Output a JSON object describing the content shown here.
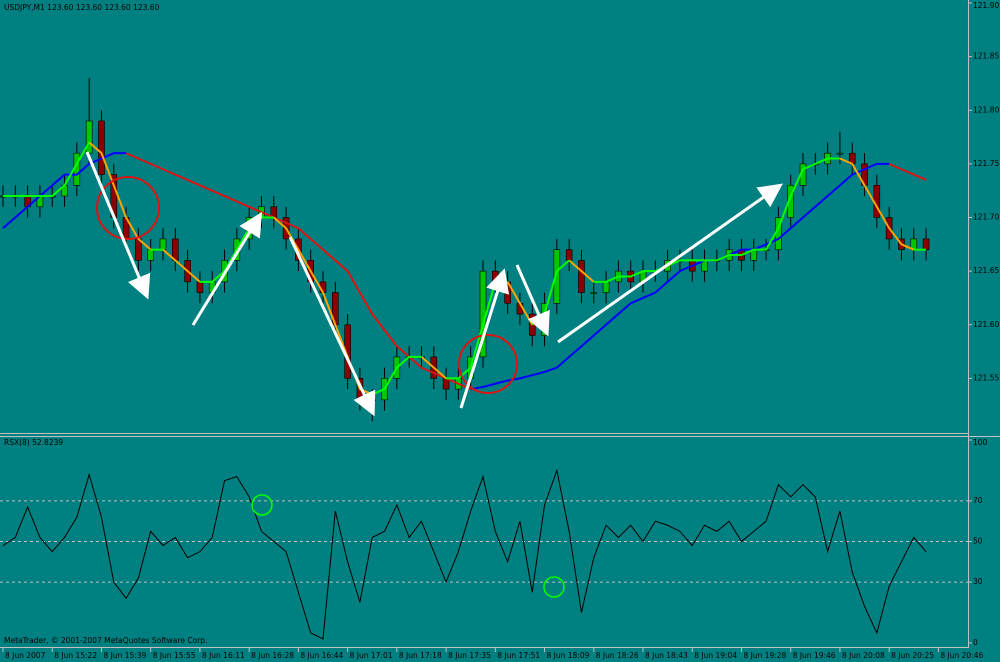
{
  "chart_data": [
    {
      "type": "candlestick",
      "title": "USDJPY,M1  123.60 123.60 123.60 123.60",
      "open": [
        121.72,
        121.72,
        121.72,
        121.71,
        121.72,
        121.72,
        121.73,
        121.76,
        121.79,
        121.74,
        121.7,
        121.68,
        121.66,
        121.67,
        121.68,
        121.66,
        121.64,
        121.63,
        121.64,
        121.66,
        121.68,
        121.7,
        121.71,
        121.7,
        121.68,
        121.66,
        121.64,
        121.63,
        121.6,
        121.55,
        121.53,
        121.53,
        121.55,
        121.57,
        121.57,
        121.57,
        121.55,
        121.54,
        121.55,
        121.57,
        121.65,
        121.64,
        121.62,
        121.61,
        121.59,
        121.62,
        121.67,
        121.66,
        121.63,
        121.63,
        121.64,
        121.65,
        121.64,
        121.65,
        121.65,
        121.66,
        121.66,
        121.65,
        121.66,
        121.66,
        121.67,
        121.66,
        121.67,
        121.67,
        121.7,
        121.73,
        121.75,
        121.75,
        121.76,
        121.76,
        121.75,
        121.73,
        121.7,
        121.68,
        121.67,
        121.68
      ],
      "high": [
        121.73,
        121.73,
        121.73,
        121.73,
        121.73,
        121.74,
        121.77,
        121.83,
        121.8,
        121.75,
        121.71,
        121.69,
        121.68,
        121.69,
        121.69,
        121.67,
        121.65,
        121.65,
        121.67,
        121.69,
        121.71,
        121.72,
        121.72,
        121.71,
        121.69,
        121.67,
        121.65,
        121.64,
        121.61,
        121.56,
        121.54,
        121.56,
        121.58,
        121.58,
        121.58,
        121.58,
        121.56,
        121.56,
        121.58,
        121.66,
        121.66,
        121.65,
        121.63,
        121.62,
        121.63,
        121.68,
        121.68,
        121.67,
        121.64,
        121.65,
        121.66,
        121.66,
        121.66,
        121.66,
        121.67,
        121.67,
        121.67,
        121.67,
        121.67,
        121.68,
        121.68,
        121.68,
        121.68,
        121.71,
        121.74,
        121.76,
        121.76,
        121.77,
        121.78,
        121.77,
        121.76,
        121.74,
        121.71,
        121.69,
        121.69,
        121.69
      ],
      "low": [
        121.71,
        121.71,
        121.7,
        121.7,
        121.71,
        121.71,
        121.72,
        121.75,
        121.73,
        121.69,
        121.67,
        121.65,
        121.65,
        121.66,
        121.65,
        121.63,
        121.62,
        121.62,
        121.63,
        121.65,
        121.67,
        121.69,
        121.69,
        121.67,
        121.65,
        121.63,
        121.62,
        121.59,
        121.54,
        121.52,
        121.51,
        121.52,
        121.54,
        121.56,
        121.56,
        121.54,
        121.53,
        121.53,
        121.54,
        121.56,
        121.63,
        121.61,
        121.6,
        121.58,
        121.58,
        121.61,
        121.65,
        121.62,
        121.62,
        121.62,
        121.63,
        121.63,
        121.63,
        121.64,
        121.64,
        121.65,
        121.64,
        121.64,
        121.65,
        121.65,
        121.65,
        121.65,
        121.66,
        121.66,
        121.69,
        121.72,
        121.74,
        121.74,
        121.75,
        121.74,
        121.72,
        121.69,
        121.67,
        121.66,
        121.66,
        121.66
      ],
      "close": [
        121.72,
        121.72,
        121.71,
        121.72,
        121.72,
        121.73,
        121.76,
        121.79,
        121.74,
        121.7,
        121.68,
        121.66,
        121.67,
        121.68,
        121.66,
        121.64,
        121.63,
        121.64,
        121.66,
        121.68,
        121.7,
        121.71,
        121.7,
        121.68,
        121.66,
        121.64,
        121.63,
        121.6,
        121.55,
        121.53,
        121.53,
        121.55,
        121.57,
        121.57,
        121.57,
        121.55,
        121.54,
        121.55,
        121.57,
        121.65,
        121.64,
        121.62,
        121.61,
        121.59,
        121.62,
        121.67,
        121.66,
        121.63,
        121.63,
        121.64,
        121.65,
        121.64,
        121.65,
        121.65,
        121.66,
        121.66,
        121.65,
        121.66,
        121.66,
        121.67,
        121.66,
        121.67,
        121.67,
        121.7,
        121.73,
        121.75,
        121.75,
        121.76,
        121.76,
        121.75,
        121.73,
        121.7,
        121.68,
        121.67,
        121.68,
        121.67
      ],
      "up_color": "#00c800",
      "down_color": "#8b0000",
      "overlays": [
        {
          "values": [
            121.69,
            121.7,
            121.71,
            121.72,
            121.73,
            121.74,
            121.74,
            121.75,
            121.755,
            121.76,
            121.76,
            121.755,
            121.75,
            121.745,
            121.74,
            121.735,
            121.73,
            121.725,
            121.72,
            121.715,
            121.71,
            121.705,
            121.7,
            121.695,
            121.69,
            121.68,
            121.67,
            121.66,
            121.65,
            121.63,
            121.61,
            121.595,
            121.58,
            121.57,
            121.56,
            121.555,
            121.55,
            121.545,
            121.54,
            121.542,
            121.545,
            121.548,
            121.55,
            121.553,
            121.556,
            121.56,
            121.57,
            121.58,
            121.59,
            121.6,
            121.61,
            121.62,
            121.625,
            121.63,
            121.64,
            121.65,
            121.655,
            121.66,
            121.66,
            121.665,
            121.67,
            121.67,
            121.675,
            121.68,
            121.69,
            121.7,
            121.71,
            121.72,
            121.73,
            121.74,
            121.745,
            121.75,
            121.75,
            121.745,
            121.74,
            121.735
          ],
          "color_up": "#0000ff",
          "color_down": "#dc1414"
        },
        {
          "values": [
            121.72,
            121.72,
            121.72,
            121.72,
            121.72,
            121.73,
            121.75,
            121.77,
            121.76,
            121.73,
            121.7,
            121.68,
            121.67,
            121.67,
            121.66,
            121.65,
            121.64,
            121.64,
            121.65,
            121.67,
            121.69,
            121.7,
            121.7,
            121.69,
            121.67,
            121.65,
            121.63,
            121.6,
            121.57,
            121.54,
            121.535,
            121.54,
            121.56,
            121.57,
            121.57,
            121.56,
            121.55,
            121.55,
            121.56,
            121.6,
            121.64,
            121.64,
            121.62,
            121.6,
            121.61,
            121.65,
            121.66,
            121.65,
            121.64,
            121.64,
            121.645,
            121.645,
            121.65,
            121.65,
            121.655,
            121.66,
            121.66,
            121.66,
            121.66,
            121.665,
            121.665,
            121.67,
            121.67,
            121.69,
            121.72,
            121.745,
            121.75,
            121.755,
            121.755,
            121.75,
            121.73,
            121.71,
            121.69,
            121.675,
            121.67,
            121.67
          ],
          "color_up": "#00ff00",
          "color_down": "#ffa500"
        }
      ],
      "xlim": [
        0,
        78
      ],
      "xticks": [
        {
          "value": 0,
          "label": "8 Jun 2007"
        },
        {
          "value": 4,
          "label": "8 Jun 15:22"
        },
        {
          "value": 8,
          "label": "8 Jun 15:39"
        },
        {
          "value": 12,
          "label": "8 Jun 15:55"
        },
        {
          "value": 16,
          "label": "8 Jun 16:11"
        },
        {
          "value": 20,
          "label": "8 Jun 16:28"
        },
        {
          "value": 24,
          "label": "8 Jun 16:44"
        },
        {
          "value": 28,
          "label": "8 Jun 17:01"
        },
        {
          "value": 32,
          "label": "8 Jun 17:18"
        },
        {
          "value": 36,
          "label": "8 Jun 17:35"
        },
        {
          "value": 40,
          "label": "8 Jun 17:51"
        },
        {
          "value": 44,
          "label": "8 Jun 18:09"
        },
        {
          "value": 48,
          "label": "8 Jun 18:26"
        },
        {
          "value": 52,
          "label": "8 Jun 18:43"
        },
        {
          "value": 56,
          "label": "8 Jun 19:04"
        },
        {
          "value": 60,
          "label": "8 Jun 19:28"
        },
        {
          "value": 64,
          "label": "8 Jun 19:46"
        },
        {
          "value": 68,
          "label": "8 Jun 20:08"
        },
        {
          "value": 72,
          "label": "8 Jun 20:25"
        },
        {
          "value": 76,
          "label": "8 Jun 20:46"
        }
      ],
      "ylim": [
        121.5,
        121.9
      ],
      "yticks": [
        {
          "value": 121.9,
          "label": "121.90"
        },
        121.85,
        {
          "value": 121.8,
          "label": "121.80"
        },
        121.75,
        {
          "value": 121.7,
          "label": "121.70"
        },
        121.65,
        {
          "value": 121.6,
          "label": "121.60"
        },
        121.55
      ]
    },
    {
      "type": "line",
      "title": "RSX(8) 52.8239",
      "color": "#000000",
      "values": [
        48,
        52,
        67,
        52,
        45,
        52,
        62,
        83,
        62,
        30,
        22,
        32,
        55,
        48,
        52,
        42,
        45,
        52,
        80,
        82,
        72,
        55,
        50,
        45,
        25,
        5,
        2,
        65,
        40,
        20,
        52,
        55,
        68,
        52,
        60,
        45,
        30,
        45,
        65,
        82,
        55,
        40,
        60,
        25,
        68,
        85,
        55,
        15,
        42,
        58,
        52,
        58,
        50,
        60,
        58,
        55,
        48,
        58,
        55,
        60,
        50,
        55,
        60,
        78,
        72,
        78,
        72,
        45,
        65,
        35,
        18,
        5,
        28,
        40,
        52,
        45
      ],
      "xlim": [
        0,
        78
      ],
      "ylim": [
        0,
        100
      ],
      "yticks": [
        0,
        30,
        50,
        70,
        100
      ],
      "grid": true
    }
  ],
  "copyright": "MetaTrader, © 2001-2007 MetaQuotes Software Corp."
}
